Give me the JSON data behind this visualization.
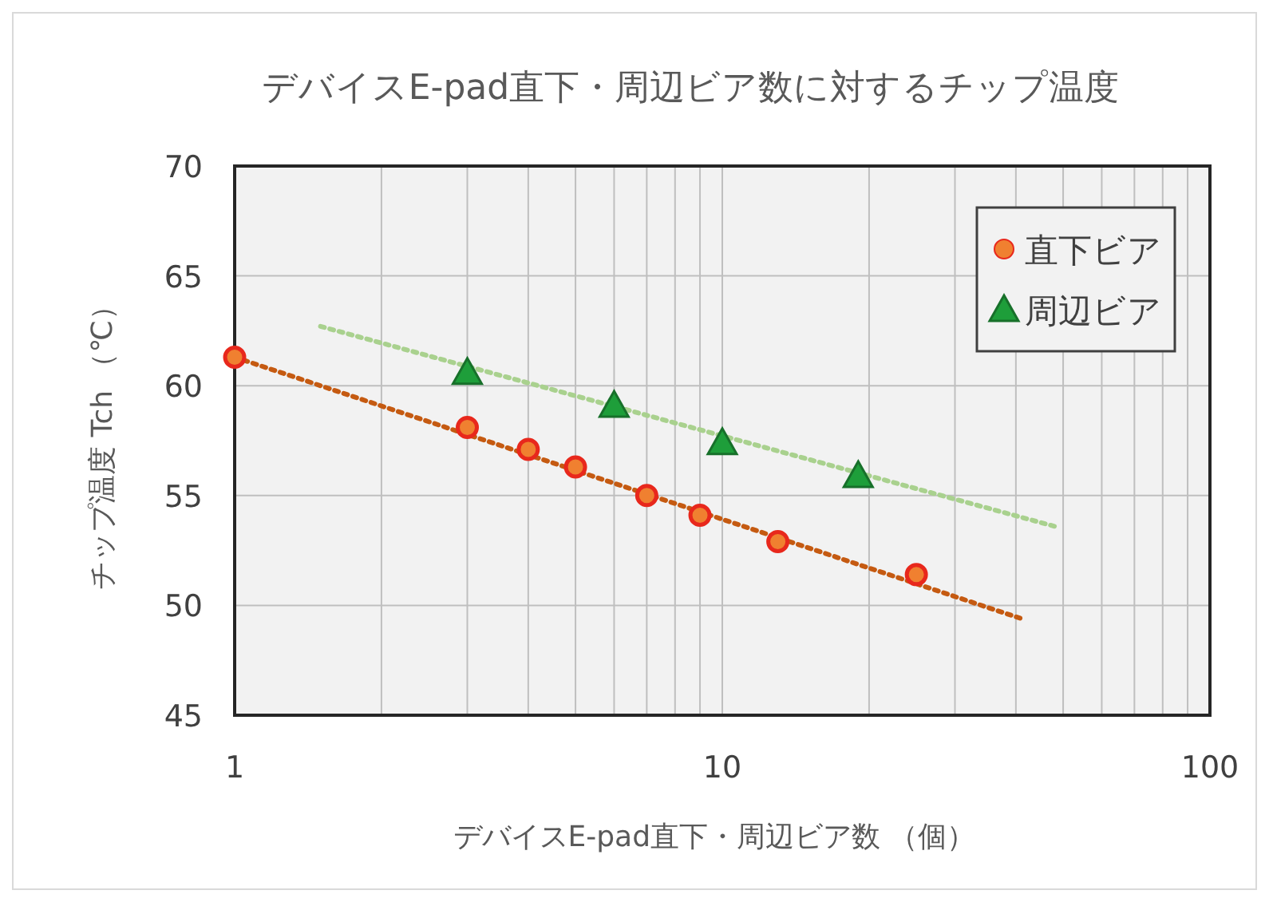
{
  "chart_data": {
    "type": "scatter",
    "title": "デバイスE-pad直下・周辺ビア数に対するチップ温度",
    "xlabel": "デバイスE-pad直下・周辺ビア数 （個）",
    "ylabel": "チップ温度 Tch （℃）",
    "log": "x",
    "grid": true,
    "legend": "top right",
    "xlim": [
      1,
      100
    ],
    "xticks": [
      1,
      10,
      100
    ],
    "ylim": [
      45,
      70
    ],
    "yticks": [
      45,
      50,
      55,
      60,
      65,
      70
    ],
    "series": [
      {
        "name": "直下ビア",
        "type": "scatter",
        "marker": "circle",
        "color": "#f08030",
        "x": [
          1,
          3,
          4,
          5,
          7,
          9,
          13,
          25
        ],
        "values": [
          61.3,
          58.1,
          57.1,
          56.3,
          55.0,
          54.1,
          52.9,
          51.4
        ]
      },
      {
        "name": "周辺ビア",
        "type": "scatter",
        "marker": "triangle",
        "color": "#1e9e3a",
        "x": [
          3,
          6,
          10,
          19
        ],
        "values": [
          60.6,
          59.1,
          57.4,
          55.9
        ]
      },
      {
        "type": "line",
        "line_style": "dotted",
        "color": "#c55a11",
        "x": [
          1,
          41
        ],
        "values": [
          61.3,
          49.4
        ]
      },
      {
        "type": "line",
        "line_style": "dotted",
        "color": "#a9d18e",
        "x": [
          1.5,
          48
        ],
        "values": [
          62.7,
          53.6
        ]
      }
    ]
  }
}
